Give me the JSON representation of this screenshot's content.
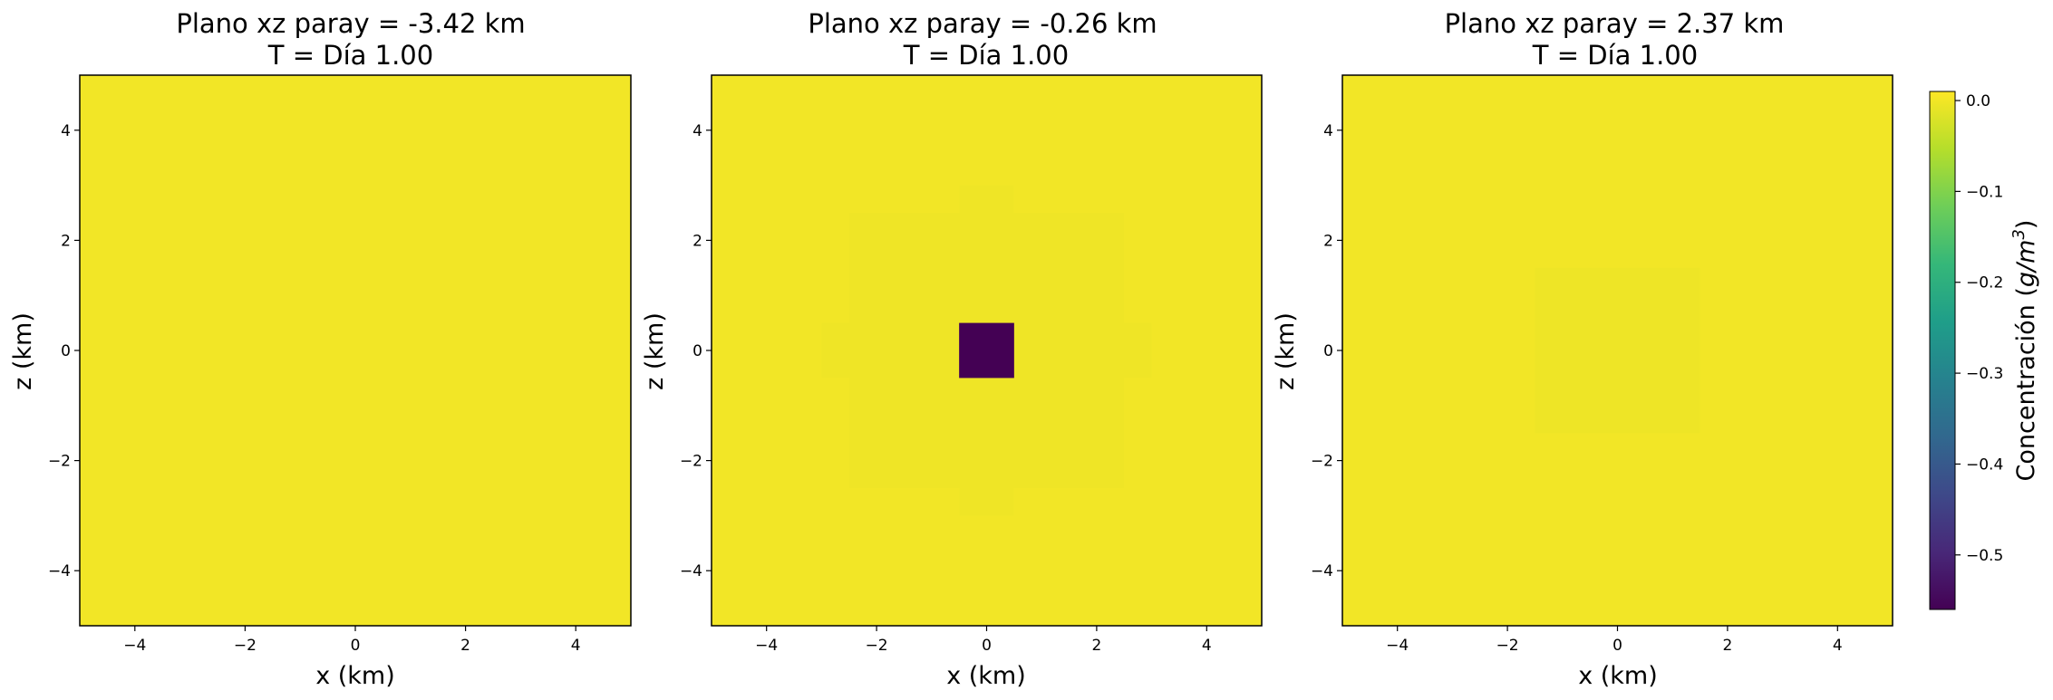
{
  "chart_data": [
    {
      "type": "heatmap",
      "title_line1": "Plano xz paray = -3.42 km",
      "title_line2": "T = Día 1.00",
      "xlabel": "x (km)",
      "ylabel": "z (km)",
      "xlim": [
        -5,
        5
      ],
      "ylim": [
        -5,
        5
      ],
      "xticks": [
        -4,
        -2,
        0,
        2,
        4
      ],
      "yticks": [
        -4,
        -2,
        0,
        2,
        4
      ],
      "tick_labels": [
        "−4",
        "−2",
        "0",
        "2",
        "4"
      ],
      "background_value": 0.0,
      "cells": [],
      "faint_cells": []
    },
    {
      "type": "heatmap",
      "title_line1": "Plano xz paray = -0.26 km",
      "title_line2": "T = Día 1.00",
      "xlabel": "x (km)",
      "ylabel": "z (km)",
      "xlim": [
        -5,
        5
      ],
      "ylim": [
        -5,
        5
      ],
      "xticks": [
        -4,
        -2,
        0,
        2,
        4
      ],
      "yticks": [
        -4,
        -2,
        0,
        2,
        4
      ],
      "tick_labels": [
        "−4",
        "−2",
        "0",
        "2",
        "4"
      ],
      "background_value": 0.0,
      "cells": [
        {
          "x0": -0.5,
          "x1": 0.5,
          "z0": -0.5,
          "z1": 0.5,
          "value": -0.56
        }
      ],
      "faint_cells": [
        {
          "x0": -1.5,
          "x1": 1.5,
          "z0": -1.5,
          "z1": 1.5,
          "value": -0.004
        },
        {
          "x0": -2.5,
          "x1": 2.5,
          "z0": -2.5,
          "z1": 2.5,
          "value": -0.002
        },
        {
          "x0": -0.5,
          "x1": 0.5,
          "z0": -3.0,
          "z1": 3.0,
          "value": -0.002
        },
        {
          "x0": -3.0,
          "x1": 3.0,
          "z0": -0.5,
          "z1": 0.5,
          "value": -0.002
        }
      ]
    },
    {
      "type": "heatmap",
      "title_line1": "Plano xz paray = 2.37 km",
      "title_line2": "T = Día 1.00",
      "xlabel": "x (km)",
      "ylabel": "z (km)",
      "xlim": [
        -5,
        5
      ],
      "ylim": [
        -5,
        5
      ],
      "xticks": [
        -4,
        -2,
        0,
        2,
        4
      ],
      "yticks": [
        -4,
        -2,
        0,
        2,
        4
      ],
      "tick_labels": [
        "−4",
        "−2",
        "0",
        "2",
        "4"
      ],
      "background_value": 0.0,
      "cells": [],
      "faint_cells": [
        {
          "x0": -1.5,
          "x1": 1.5,
          "z0": -1.5,
          "z1": 1.5,
          "value": -0.003
        }
      ]
    }
  ],
  "colorbar": {
    "label": "Concentración (g/m³)",
    "label_prefix": "Concentración (",
    "label_unit_base": "g/m",
    "label_unit_exp": "3",
    "label_suffix": ")",
    "colormap": "viridis",
    "vmin": -0.56,
    "vmax": 0.01,
    "ticks": [
      0.0,
      -0.1,
      -0.2,
      -0.3,
      -0.4,
      -0.5
    ],
    "tick_labels": [
      "0.0",
      "−0.1",
      "−0.2",
      "−0.3",
      "−0.4",
      "−0.5"
    ],
    "colors": [
      "#440154",
      "#482878",
      "#3e4989",
      "#31688e",
      "#26828e",
      "#1f9e89",
      "#35b779",
      "#6ece58",
      "#b5de2b",
      "#fde725"
    ]
  }
}
